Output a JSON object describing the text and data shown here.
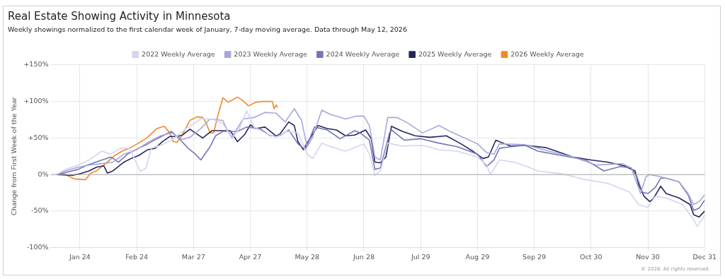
{
  "chart_data": {
    "type": "line",
    "title": "Real Estate Showing Activity in Minnesota",
    "subtitle": "Weekly showings normalized to the first calendar week of January, 7-day moving average. Data through May 12, 2026",
    "ylabel": "Change from First Week of the Year",
    "legend": "top",
    "grid": true,
    "marker": "none",
    "line_style": "solid",
    "xlim": [
      "--01-08",
      "--12-31"
    ],
    "xticks": [
      {
        "value": "--01-24",
        "label": "Jan 24"
      },
      {
        "value": "--02-24",
        "label": "Feb 24"
      },
      {
        "value": "--03-27",
        "label": "Mar 27"
      },
      {
        "value": "--04-27",
        "label": "Apr 27"
      },
      {
        "value": "--05-28",
        "label": "May 28"
      },
      {
        "value": "--06-28",
        "label": "Jun 28"
      },
      {
        "value": "--07-29",
        "label": "Jul 29"
      },
      {
        "value": "--08-29",
        "label": "Aug 29"
      },
      {
        "value": "--09-29",
        "label": "Sep 29"
      },
      {
        "value": "--10-30",
        "label": "Oct 30"
      },
      {
        "value": "--11-30",
        "label": "Nov 30"
      },
      {
        "value": "--12-31",
        "label": "Dec 31"
      }
    ],
    "ylim": [
      -100,
      150
    ],
    "yticks": [
      {
        "value": -100,
        "label": "-100%"
      },
      {
        "value": -50,
        "label": "-50%"
      },
      {
        "value": 0,
        "label": "0%"
      },
      {
        "value": 50,
        "label": "+50%"
      },
      {
        "value": 100,
        "label": "+100%"
      },
      {
        "value": 150,
        "label": "+150%"
      }
    ],
    "ref_lines": [
      {
        "axis": "y",
        "value": 0,
        "color": "#aaaaaa"
      }
    ],
    "annotations": [
      "© 2026. All rights reserved."
    ],
    "series": [
      {
        "name": "2022 Weekly Average",
        "color": "#d4d4f0",
        "x": [
          "--01-11",
          "--01-16",
          "--01-23",
          "--01-29",
          "--02-05",
          "--02-10",
          "--02-15",
          "--02-20",
          "--02-23",
          "--02-26",
          "--03-01",
          "--03-04",
          "--03-09",
          "--03-15",
          "--03-21",
          "--03-23",
          "--03-31",
          "--04-06",
          "--04-12",
          "--04-17",
          "--04-21",
          "--04-25",
          "--04-29",
          "--05-05",
          "--05-11",
          "--05-17",
          "--05-23",
          "--05-28",
          "--05-31",
          "--06-05",
          "--06-10",
          "--06-18",
          "--06-24",
          "--06-28",
          "--07-01",
          "--07-04",
          "--07-07",
          "--07-11",
          "--07-19",
          "--07-30",
          "--08-08",
          "--08-18",
          "--08-29",
          "--09-03",
          "--09-05",
          "--09-10",
          "--09-18",
          "--09-25",
          "--10-01",
          "--10-14",
          "--10-27",
          "--11-08",
          "--11-20",
          "--11-25",
          "--11-30",
          "--12-04",
          "--12-10",
          "--12-19",
          "--12-25",
          "--12-27",
          "--12-30",
          "--12-31"
        ],
        "values": [
          0,
          7,
          13,
          20,
          32,
          28,
          36,
          36,
          20,
          4,
          9,
          36,
          40,
          47,
          59,
          63,
          76,
          76,
          70,
          49,
          63,
          87,
          65,
          57,
          51,
          59,
          57,
          28,
          22,
          43,
          38,
          32,
          38,
          42,
          28,
          -1,
          5,
          43,
          39,
          40,
          34,
          32,
          24,
          13,
          0,
          20,
          17,
          11,
          5,
          1,
          -7,
          -12,
          -24,
          -41,
          -45,
          -30,
          -32,
          -41,
          -62,
          -71,
          -60,
          -55
        ]
      },
      {
        "name": "2023 Weekly Average",
        "color": "#a6a8dc",
        "x": [
          "--01-11",
          "--01-16",
          "--01-23",
          "--01-29",
          "--02-05",
          "--02-11",
          "--02-17",
          "--02-24",
          "--03-02",
          "--03-09",
          "--03-15",
          "--03-21",
          "--03-25",
          "--03-31",
          "--04-05",
          "--04-12",
          "--04-14",
          "--04-17",
          "--04-23",
          "--04-29",
          "--05-05",
          "--05-11",
          "--05-16",
          "--05-21",
          "--05-25",
          "--05-28",
          "--05-31",
          "--06-05",
          "--06-10",
          "--06-18",
          "--06-24",
          "--06-28",
          "--07-01",
          "--07-04",
          "--07-07",
          "--07-11",
          "--07-16",
          "--07-21",
          "--07-30",
          "--08-08",
          "--08-14",
          "--08-29",
          "--09-03",
          "--09-07",
          "--09-10",
          "--09-24",
          "--10-07",
          "--10-20",
          "--11-02",
          "--11-16",
          "--11-21",
          "--11-26",
          "--11-29",
          "--12-01",
          "--12-07",
          "--12-17",
          "--12-22",
          "--12-25",
          "--12-28",
          "--12-31"
        ],
        "values": [
          0,
          5,
          10,
          13,
          15,
          17,
          28,
          34,
          44,
          53,
          57,
          48,
          51,
          63,
          76,
          74,
          63,
          51,
          76,
          78,
          85,
          84,
          72,
          90,
          74,
          38,
          51,
          88,
          82,
          76,
          80,
          80,
          67,
          24,
          20,
          78,
          78,
          72,
          57,
          67,
          59,
          42,
          30,
          28,
          42,
          41,
          32,
          24,
          13,
          15,
          9,
          -26,
          -3,
          0,
          -3,
          -10,
          -26,
          -41,
          -37,
          -28
        ]
      },
      {
        "name": "2024 Weekly Average",
        "color": "#7476b8",
        "x": [
          "--01-11",
          "--01-15",
          "--01-23",
          "--01-28",
          "--02-05",
          "--02-10",
          "--02-14",
          "--02-19",
          "--02-25",
          "--03-02",
          "--03-07",
          "--03-15",
          "--03-20",
          "--03-24",
          "--03-28",
          "--03-31",
          "--04-05",
          "--04-08",
          "--04-12",
          "--04-20",
          "--04-25",
          "--05-02",
          "--05-08",
          "--05-13",
          "--05-18",
          "--05-23",
          "--05-27",
          "--06-01",
          "--06-08",
          "--06-15",
          "--06-23",
          "--06-26",
          "--07-01",
          "--07-04",
          "--07-07",
          "--07-12",
          "--07-13",
          "--07-20",
          "--07-29",
          "--08-08",
          "--08-18",
          "--08-29",
          "--09-03",
          "--09-07",
          "--09-10",
          "--09-16",
          "--09-24",
          "--10-01",
          "--10-14",
          "--10-27",
          "--11-06",
          "--11-15",
          "--11-21",
          "--11-24",
          "--11-27",
          "--11-30",
          "--12-04",
          "--12-07",
          "--12-10",
          "--12-17",
          "--12-22",
          "--12-25",
          "--12-28",
          "--12-31"
        ],
        "values": [
          0,
          2,
          7,
          13,
          20,
          24,
          17,
          28,
          36,
          42,
          49,
          59,
          47,
          36,
          28,
          20,
          38,
          53,
          59,
          59,
          65,
          63,
          53,
          53,
          61,
          42,
          34,
          65,
          61,
          49,
          60,
          57,
          47,
          7,
          9,
          57,
          61,
          47,
          49,
          43,
          38,
          28,
          11,
          20,
          36,
          38,
          40,
          32,
          26,
          20,
          5,
          11,
          9,
          -3,
          -24,
          -26,
          -18,
          -5,
          -5,
          -10,
          -28,
          -49,
          -46,
          -35
        ]
      },
      {
        "name": "2025 Weekly Average",
        "color": "#25255e",
        "x": [
          "--01-11",
          "--01-20",
          "--01-24",
          "--01-29",
          "--02-02",
          "--02-06",
          "--02-08",
          "--02-11",
          "--02-15",
          "--02-17",
          "--02-21",
          "--02-25",
          "--03-02",
          "--03-06",
          "--03-10",
          "--03-14",
          "--03-18",
          "--03-21",
          "--03-25",
          "--04-01",
          "--04-06",
          "--04-16",
          "--04-20",
          "--04-24",
          "--04-27",
          "--04-30",
          "--05-05",
          "--05-11",
          "--05-13",
          "--05-18",
          "--05-21",
          "--05-23",
          "--05-26",
          "--05-28",
          "--06-03",
          "--06-08",
          "--06-13",
          "--06-18",
          "--06-23",
          "--06-29",
          "--07-02",
          "--07-04",
          "--07-07",
          "--07-10",
          "--07-13",
          "--07-19",
          "--07-26",
          "--08-03",
          "--08-12",
          "--08-20",
          "--08-27",
          "--09-01",
          "--09-04",
          "--09-08",
          "--09-12",
          "--09-16",
          "--09-24",
          "--10-05",
          "--10-11",
          "--10-20",
          "--10-30",
          "--11-08",
          "--11-17",
          "--11-23",
          "--11-25",
          "--11-28",
          "--12-01",
          "--12-03",
          "--12-07",
          "--12-10",
          "--12-17",
          "--12-23",
          "--12-25",
          "--12-28",
          "--12-31"
        ],
        "values": [
          0,
          -1,
          1,
          5,
          10,
          12,
          2,
          5,
          13,
          17,
          22,
          26,
          34,
          36,
          45,
          52,
          52,
          54,
          62,
          50,
          60,
          60,
          45,
          55,
          68,
          63,
          65,
          53,
          55,
          72,
          67,
          45,
          34,
          43,
          67,
          63,
          61,
          53,
          54,
          61,
          49,
          17,
          16,
          24,
          66,
          59,
          53,
          51,
          53,
          42,
          31,
          22,
          24,
          47,
          43,
          39,
          40,
          37,
          32,
          24,
          20,
          17,
          12,
          5,
          -14,
          -30,
          -37,
          -33,
          -16,
          -26,
          -32,
          -41,
          -55,
          -58,
          -50
        ]
      },
      {
        "name": "2026 Weekly Average",
        "color": "#f08a24",
        "x": [
          "--01-11",
          "--01-15",
          "--01-21",
          "--01-27",
          "--01-30",
          "--02-02",
          "--02-07",
          "--02-12",
          "--02-16",
          "--02-20",
          "--02-25",
          "--03-02",
          "--03-07",
          "--03-11",
          "--03-14",
          "--03-16",
          "--03-18",
          "--03-21",
          "--03-25",
          "--03-29",
          "--04-01",
          "--04-03",
          "--04-05",
          "--04-07",
          "--04-09",
          "--04-12",
          "--04-15",
          "--04-20",
          "--04-23",
          "--04-26",
          "--04-30",
          "--05-04",
          "--05-09",
          "--05-10",
          "--05-11",
          "--05-12"
        ],
        "values": [
          0,
          1,
          -6,
          -7,
          2,
          5,
          15,
          26,
          32,
          36,
          43,
          51,
          63,
          66,
          57,
          45,
          44,
          55,
          74,
          79,
          78,
          70,
          57,
          57,
          78,
          105,
          99,
          106,
          101,
          94,
          99,
          100,
          100,
          90,
          95,
          92
        ]
      }
    ]
  }
}
